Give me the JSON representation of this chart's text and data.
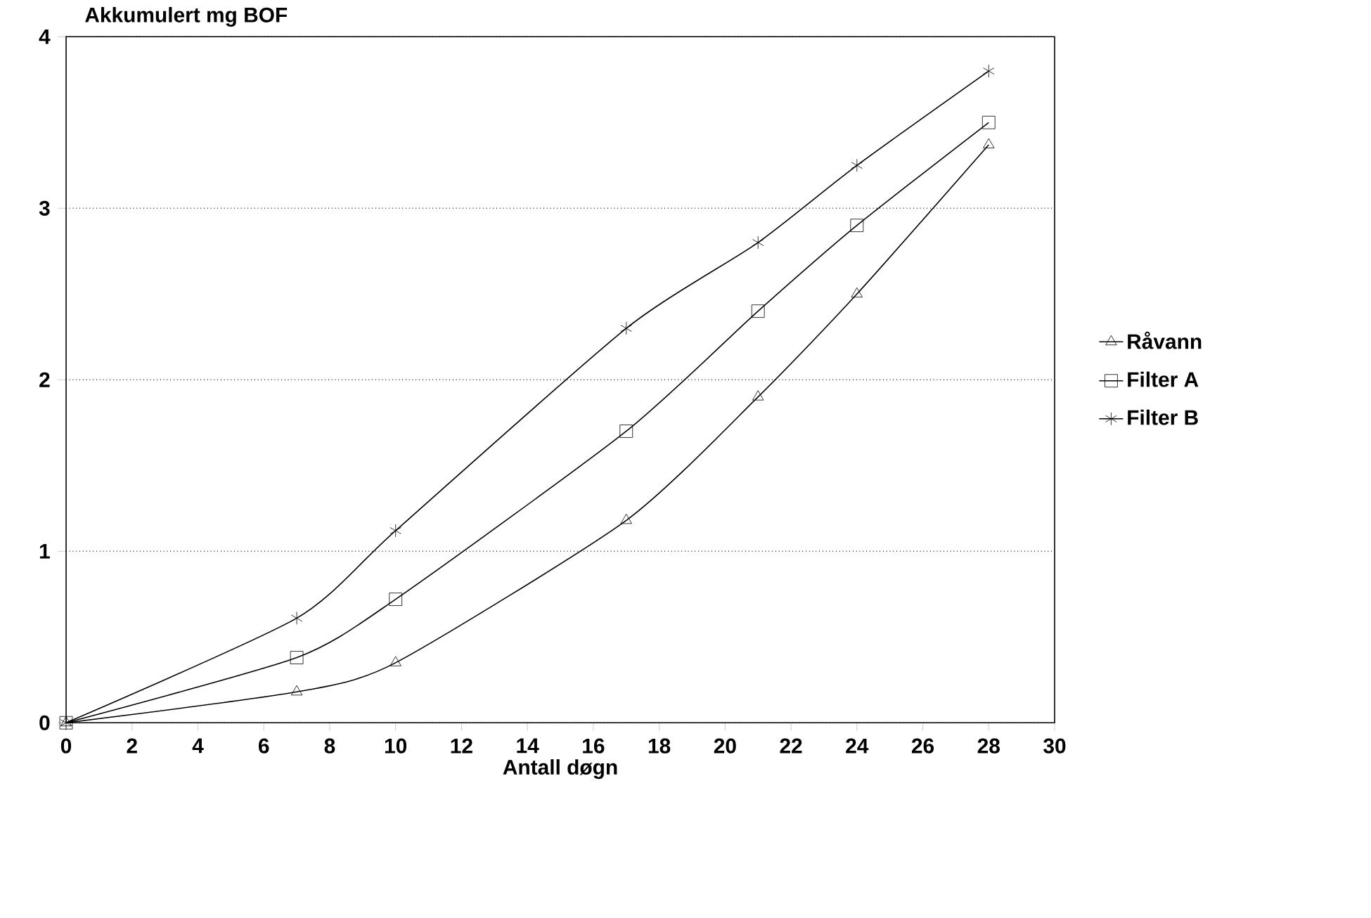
{
  "chart_data": {
    "type": "line",
    "ylabel": "Akkumulert mg BOF",
    "xlabel": "Antall døgn",
    "x": [
      0,
      7,
      10,
      17,
      21,
      24,
      28
    ],
    "series": [
      {
        "name": "Råvann",
        "color": "#000000",
        "marker": "triangle",
        "values": [
          0,
          0.18,
          0.35,
          1.18,
          1.9,
          2.5,
          3.37
        ]
      },
      {
        "name": "Filter A",
        "color": "#000000",
        "marker": "square",
        "values": [
          0,
          0.38,
          0.72,
          1.7,
          2.4,
          2.9,
          3.5
        ]
      },
      {
        "name": "Filter B",
        "color": "#000000",
        "marker": "cross",
        "values": [
          0,
          0.61,
          1.12,
          2.3,
          2.8,
          3.25,
          3.8
        ]
      }
    ],
    "xlim": [
      0,
      30
    ],
    "ylim": [
      0,
      4
    ],
    "xticks": [
      0,
      2,
      4,
      6,
      8,
      10,
      12,
      14,
      16,
      18,
      20,
      22,
      24,
      26,
      28,
      30
    ],
    "yticks": [
      0,
      1,
      2,
      3,
      4
    ],
    "grid": "y",
    "legend": "right",
    "line_style": "solid"
  }
}
